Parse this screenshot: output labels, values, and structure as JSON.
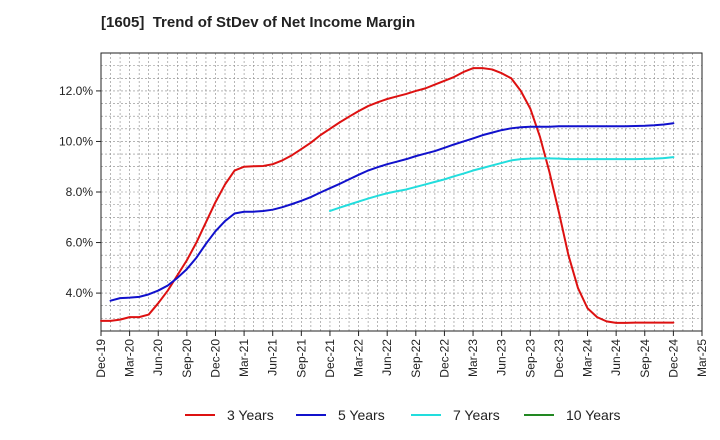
{
  "chart_data": {
    "type": "line",
    "title": "[1605]  Trend of StDev of Net Income Margin",
    "x_ticks": [
      "Dec-19",
      "Mar-20",
      "Jun-20",
      "Sep-20",
      "Dec-20",
      "Mar-21",
      "Jun-21",
      "Sep-21",
      "Dec-21",
      "Mar-22",
      "Jun-22",
      "Sep-22",
      "Dec-22",
      "Mar-23",
      "Jun-23",
      "Sep-23",
      "Dec-23",
      "Mar-24",
      "Jun-24",
      "Sep-24",
      "Dec-24",
      "Mar-25"
    ],
    "y_ticks": [
      "4.0%",
      "6.0%",
      "8.0%",
      "10.0%",
      "12.0%"
    ],
    "y_tick_values": [
      4.0,
      6.0,
      8.0,
      10.0,
      12.0
    ],
    "ylim": [
      2.5,
      13.5
    ],
    "grid": true,
    "legend_position": "bottom",
    "series": [
      {
        "name": "3 Years",
        "color": "#dd1111",
        "x": [
          "Dec-19",
          "Jan-20",
          "Feb-20",
          "Mar-20",
          "Apr-20",
          "May-20",
          "Jun-20",
          "Jul-20",
          "Aug-20",
          "Sep-20",
          "Oct-20",
          "Nov-20",
          "Dec-20",
          "Jan-21",
          "Feb-21",
          "Mar-21",
          "Apr-21",
          "May-21",
          "Jun-21",
          "Jul-21",
          "Aug-21",
          "Sep-21",
          "Oct-21",
          "Nov-21",
          "Dec-21",
          "Jan-22",
          "Feb-22",
          "Mar-22",
          "Apr-22",
          "May-22",
          "Jun-22",
          "Jul-22",
          "Aug-22",
          "Sep-22",
          "Oct-22",
          "Nov-22",
          "Dec-22",
          "Jan-23",
          "Feb-23",
          "Mar-23",
          "Apr-23",
          "May-23",
          "Jun-23",
          "Jul-23",
          "Aug-23",
          "Sep-23",
          "Oct-23",
          "Nov-23",
          "Dec-23",
          "Jan-24",
          "Feb-24",
          "Mar-24",
          "Apr-24",
          "May-24",
          "Jun-24",
          "Jul-24",
          "Aug-24",
          "Sep-24",
          "Oct-24",
          "Nov-24",
          "Dec-24"
        ],
        "values": [
          2.9,
          2.9,
          2.95,
          3.05,
          3.05,
          3.15,
          3.6,
          4.1,
          4.7,
          5.3,
          6.0,
          6.8,
          7.6,
          8.3,
          8.85,
          9.0,
          9.02,
          9.03,
          9.1,
          9.25,
          9.45,
          9.7,
          9.95,
          10.25,
          10.5,
          10.75,
          10.98,
          11.2,
          11.4,
          11.55,
          11.68,
          11.78,
          11.88,
          12.0,
          12.1,
          12.25,
          12.4,
          12.55,
          12.75,
          12.9,
          12.9,
          12.85,
          12.7,
          12.5,
          12.0,
          11.3,
          10.2,
          8.8,
          7.2,
          5.5,
          4.2,
          3.4,
          3.05,
          2.88,
          2.82,
          2.82,
          2.83,
          2.83,
          2.83,
          2.83,
          2.83
        ]
      },
      {
        "name": "5 Years",
        "color": "#1111cc",
        "x": [
          "Jan-20",
          "Feb-20",
          "Mar-20",
          "Apr-20",
          "May-20",
          "Jun-20",
          "Jul-20",
          "Aug-20",
          "Sep-20",
          "Oct-20",
          "Nov-20",
          "Dec-20",
          "Jan-21",
          "Feb-21",
          "Mar-21",
          "Apr-21",
          "May-21",
          "Jun-21",
          "Jul-21",
          "Aug-21",
          "Sep-21",
          "Oct-21",
          "Nov-21",
          "Dec-21",
          "Jan-22",
          "Feb-22",
          "Mar-22",
          "Apr-22",
          "May-22",
          "Jun-22",
          "Jul-22",
          "Aug-22",
          "Sep-22",
          "Oct-22",
          "Nov-22",
          "Dec-22",
          "Jan-23",
          "Feb-23",
          "Mar-23",
          "Apr-23",
          "May-23",
          "Jun-23",
          "Jul-23",
          "Aug-23",
          "Sep-23",
          "Oct-23",
          "Nov-23",
          "Dec-23",
          "Jan-24",
          "Feb-24",
          "Mar-24",
          "Apr-24",
          "May-24",
          "Jun-24",
          "Jul-24",
          "Aug-24",
          "Sep-24",
          "Oct-24",
          "Nov-24",
          "Dec-24"
        ],
        "values": [
          3.7,
          3.8,
          3.82,
          3.85,
          3.95,
          4.1,
          4.3,
          4.6,
          4.95,
          5.4,
          5.95,
          6.45,
          6.85,
          7.15,
          7.22,
          7.22,
          7.25,
          7.3,
          7.4,
          7.52,
          7.65,
          7.8,
          7.98,
          8.15,
          8.32,
          8.5,
          8.68,
          8.85,
          8.98,
          9.1,
          9.2,
          9.3,
          9.42,
          9.52,
          9.62,
          9.75,
          9.88,
          10.0,
          10.12,
          10.25,
          10.35,
          10.45,
          10.52,
          10.56,
          10.58,
          10.58,
          10.58,
          10.6,
          10.6,
          10.6,
          10.6,
          10.6,
          10.6,
          10.6,
          10.6,
          10.61,
          10.62,
          10.64,
          10.67,
          10.72
        ]
      },
      {
        "name": "7 Years",
        "color": "#22dddd",
        "x": [
          "Dec-21",
          "Jan-22",
          "Feb-22",
          "Mar-22",
          "Apr-22",
          "May-22",
          "Jun-22",
          "Jul-22",
          "Aug-22",
          "Sep-22",
          "Oct-22",
          "Nov-22",
          "Dec-22",
          "Jan-23",
          "Feb-23",
          "Mar-23",
          "Apr-23",
          "May-23",
          "Jun-23",
          "Jul-23",
          "Aug-23",
          "Sep-23",
          "Oct-23",
          "Nov-23",
          "Dec-23",
          "Jan-24",
          "Feb-24",
          "Mar-24",
          "Apr-24",
          "May-24",
          "Jun-24",
          "Jul-24",
          "Aug-24",
          "Sep-24",
          "Oct-24",
          "Nov-24",
          "Dec-24"
        ],
        "values": [
          7.25,
          7.38,
          7.5,
          7.62,
          7.74,
          7.85,
          7.95,
          8.03,
          8.1,
          8.2,
          8.3,
          8.4,
          8.5,
          8.62,
          8.73,
          8.85,
          8.95,
          9.05,
          9.15,
          9.25,
          9.3,
          9.32,
          9.33,
          9.33,
          9.32,
          9.3,
          9.3,
          9.3,
          9.3,
          9.3,
          9.3,
          9.3,
          9.3,
          9.31,
          9.32,
          9.34,
          9.38
        ]
      },
      {
        "name": "10 Years",
        "color": "#228822",
        "x": [],
        "values": []
      }
    ]
  }
}
